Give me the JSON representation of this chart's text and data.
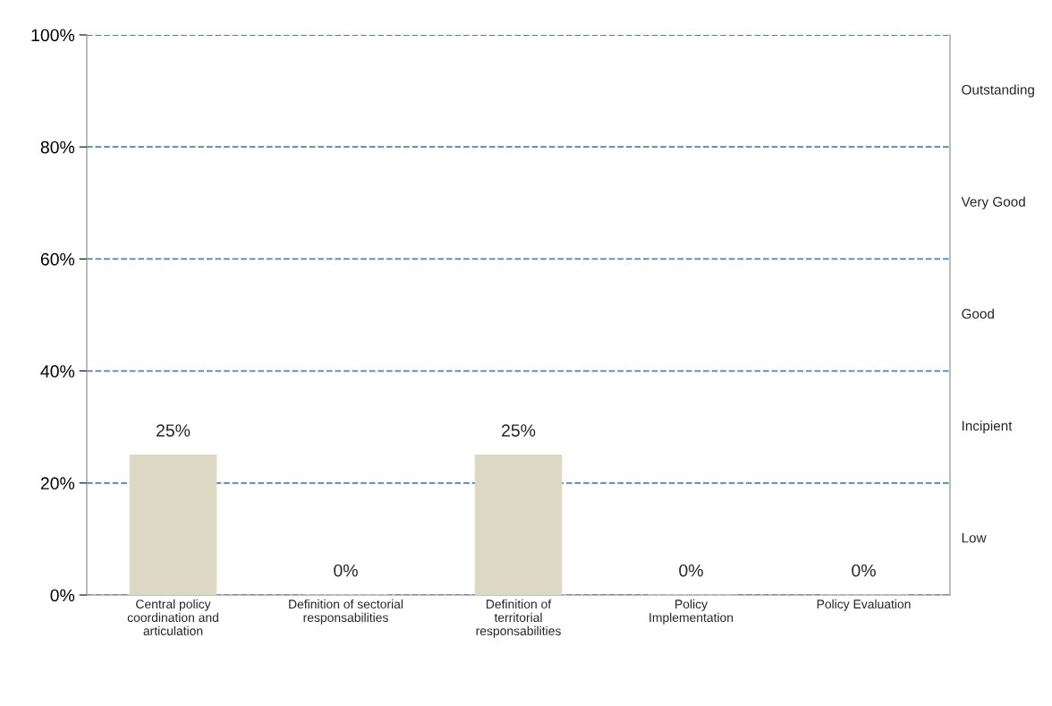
{
  "chart_data": {
    "type": "bar",
    "categories": [
      "Central policy\ncoordination and\narticulation",
      "Definition of sectorial\nresponsabilities",
      "Definition of\nterritorial\nresponsabilities",
      "Policy\nImplementation",
      "Policy Evaluation"
    ],
    "values": [
      25,
      0,
      25,
      0,
      0
    ],
    "value_labels": [
      "25%",
      "0%",
      "25%",
      "0%",
      "0%"
    ],
    "color": "#ddd8c3",
    "ylim": [
      0,
      100
    ],
    "yticks": [
      {
        "value": 0,
        "label": "0%"
      },
      {
        "value": 20,
        "label": "20%"
      },
      {
        "value": 40,
        "label": "40%"
      },
      {
        "value": 60,
        "label": "60%"
      },
      {
        "value": 80,
        "label": "80%"
      },
      {
        "value": 100,
        "label": "100%"
      }
    ],
    "grid": "y",
    "line_style": "dashed",
    "annotations": [
      "Low",
      "Incipient",
      "Good",
      "Very Good",
      "Outstanding"
    ]
  }
}
